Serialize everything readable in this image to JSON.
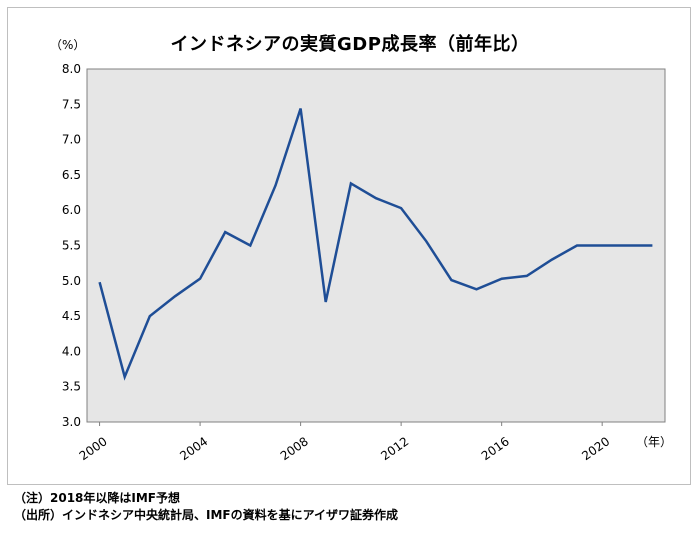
{
  "chart_data": {
    "type": "line",
    "title": "インドネシアの実質GDP成長率（前年比）",
    "y_unit_label": "（%）",
    "x_unit_label": "（年）",
    "ylim": [
      3.0,
      8.0
    ],
    "y_ticks": [
      "3.0",
      "3.5",
      "4.0",
      "4.5",
      "5.0",
      "5.5",
      "6.0",
      "6.5",
      "7.0",
      "7.5",
      "8.0"
    ],
    "x_tick_labels": [
      "2000",
      "2004",
      "2008",
      "2012",
      "2016",
      "2020"
    ],
    "x_tick_values": [
      2000,
      2004,
      2008,
      2012,
      2016,
      2020
    ],
    "grid": false,
    "legend": "none",
    "series": [
      {
        "color": "#1f4e96",
        "x": [
          2000,
          2001,
          2002,
          2003,
          2004,
          2005,
          2006,
          2007,
          2008,
          2009,
          2010,
          2011,
          2012,
          2013,
          2014,
          2015,
          2016,
          2017,
          2018,
          2019,
          2020,
          2021,
          2022
        ],
        "values": [
          4.98,
          3.64,
          4.5,
          4.78,
          5.03,
          5.69,
          5.5,
          6.35,
          7.44,
          4.7,
          6.38,
          6.17,
          6.03,
          5.56,
          5.01,
          4.88,
          5.03,
          5.07,
          5.3,
          5.5,
          5.5,
          5.5,
          5.5
        ]
      }
    ]
  },
  "notes": {
    "note1": "（注）2018年以降はIMF予想",
    "note2": "（出所）インドネシア中央統計局、IMFの資料を基にアイザワ証券作成"
  }
}
